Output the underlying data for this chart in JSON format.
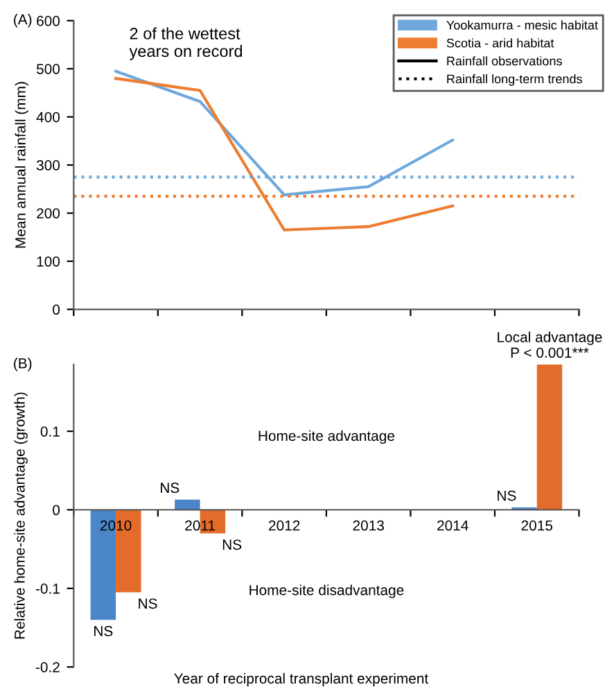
{
  "chart_data": [
    {
      "type": "line",
      "title": "(A)",
      "ylabel": "Mean annual rainfall (mm)",
      "categories": [
        null,
        null,
        null,
        null,
        null,
        null
      ],
      "series": [
        {
          "name": "Yookamurra - mesic habitat",
          "color": "#6fa8dc",
          "values": [
            495,
            432,
            238,
            255,
            352,
            null
          ]
        },
        {
          "name": "Scotia - arid habitat",
          "color": "#ed7d31",
          "values": [
            480,
            455,
            165,
            172,
            215,
            null
          ]
        }
      ],
      "line_style": "solid",
      "ylim": [
        0,
        600
      ],
      "yticks": [
        0,
        100,
        200,
        300,
        400,
        500,
        600
      ],
      "ref_lines": [
        {
          "axis": "y",
          "value": 275,
          "color": "#6fa8dc",
          "line_style": "dotted"
        },
        {
          "axis": "y",
          "value": 235,
          "color": "#ed7d31",
          "line_style": "dotted"
        }
      ],
      "annotations": [
        "2 of the wettest\nyears on record",
        "Rainfall observations",
        "Rainfall long-term trends"
      ],
      "legend": "top right",
      "grid": false,
      "tick_labels": "y"
    },
    {
      "type": "bar",
      "title": "(B)",
      "xlabel": "Year of reciprocal transplant experiment",
      "ylabel": "Relative home-site advantage (growth)",
      "categories": [
        "2010",
        "2011",
        "2012",
        "2013",
        "2014",
        "2015"
      ],
      "series": [
        {
          "color": "#4a86c8",
          "values": [
            -0.14,
            0.013,
            null,
            null,
            null,
            0.003
          ],
          "value_labels": [
            "NS",
            "NS",
            null,
            null,
            null,
            "NS"
          ]
        },
        {
          "color": "#e46c2a",
          "values": [
            -0.105,
            -0.03,
            null,
            null,
            null,
            0.185
          ],
          "value_labels": [
            "NS",
            "NS",
            null,
            null,
            null,
            "Local advantage\nP < 0.001***"
          ]
        }
      ],
      "ylim": [
        -0.2,
        0.185
      ],
      "yticks": [
        -0.2,
        -0.1,
        0,
        0.1
      ],
      "annotations": [
        "Home-site advantage",
        "Home-site disadvantage"
      ],
      "grid": false
    }
  ]
}
